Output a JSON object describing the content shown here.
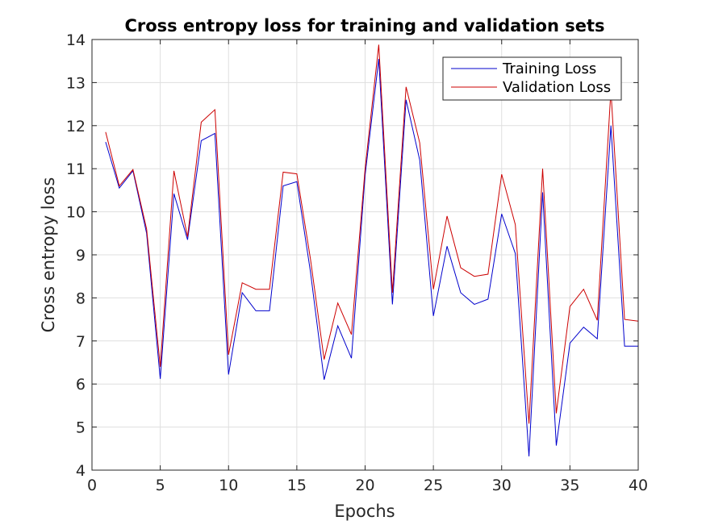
{
  "chart_data": {
    "type": "line",
    "title": "Cross entropy loss for training and validation sets",
    "xlabel": "Epochs",
    "ylabel": "Cross entropy loss",
    "xlim": [
      0,
      40
    ],
    "ylim": [
      4,
      14
    ],
    "xticks": [
      0,
      5,
      10,
      15,
      20,
      25,
      30,
      35,
      40
    ],
    "yticks": [
      4,
      5,
      6,
      7,
      8,
      9,
      10,
      11,
      12,
      13,
      14
    ],
    "grid": true,
    "legend_position": "top-right",
    "x": [
      1,
      2,
      3,
      4,
      5,
      6,
      7,
      8,
      9,
      10,
      11,
      12,
      13,
      14,
      15,
      16,
      17,
      18,
      19,
      20,
      21,
      22,
      23,
      24,
      25,
      26,
      27,
      28,
      29,
      30,
      31,
      32,
      33,
      34,
      35,
      36,
      37,
      38,
      39,
      40
    ],
    "series": [
      {
        "name": "Training Loss",
        "color": "#0000cc",
        "values": [
          11.62,
          10.55,
          10.95,
          9.5,
          6.12,
          10.42,
          9.35,
          11.65,
          11.82,
          6.22,
          8.12,
          7.7,
          7.7,
          10.6,
          10.7,
          8.6,
          6.1,
          7.35,
          6.6,
          10.85,
          13.55,
          7.85,
          12.6,
          11.2,
          7.58,
          9.2,
          8.12,
          7.85,
          7.97,
          9.95,
          9.03,
          4.32,
          10.45,
          4.57,
          6.95,
          7.32,
          7.05,
          12.0,
          6.88,
          6.88
        ]
      },
      {
        "name": "Validation Loss",
        "color": "#cc0000",
        "values": [
          11.85,
          10.6,
          10.98,
          9.6,
          6.4,
          10.95,
          9.42,
          12.08,
          12.37,
          6.68,
          8.35,
          8.2,
          8.2,
          10.92,
          10.88,
          8.9,
          6.57,
          7.88,
          7.15,
          11.0,
          13.88,
          8.12,
          12.9,
          11.6,
          8.2,
          9.9,
          8.7,
          8.5,
          8.55,
          10.87,
          9.7,
          5.08,
          11.0,
          5.32,
          7.8,
          8.2,
          7.48,
          12.82,
          7.5,
          7.46
        ]
      }
    ]
  }
}
